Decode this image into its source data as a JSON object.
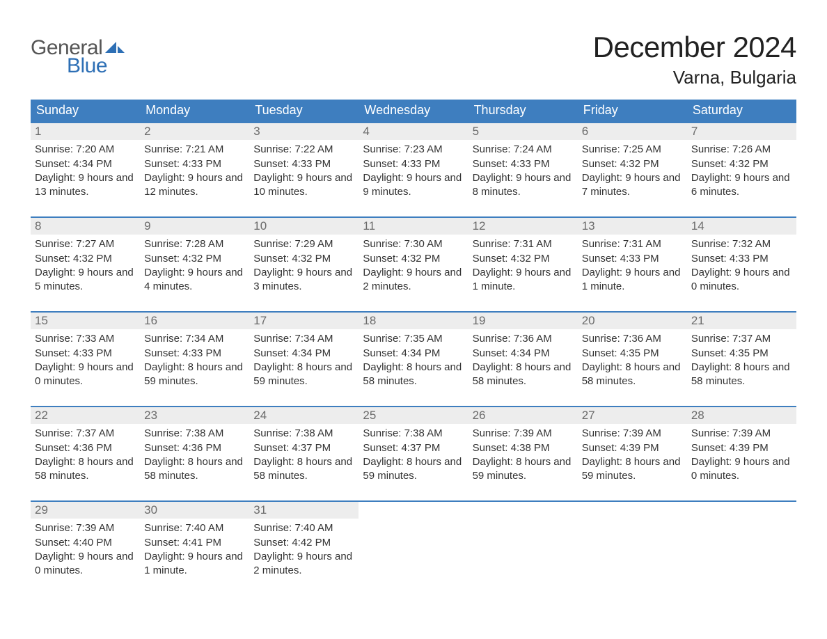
{
  "logo": {
    "text_general": "General",
    "text_blue": "Blue",
    "accent_color": "#2d6fb5",
    "general_color": "#555555"
  },
  "title": "December 2024",
  "location": "Varna, Bulgaria",
  "colors": {
    "header_bg": "#3e7ebf",
    "header_text": "#ffffff",
    "daynum_bg": "#ededed",
    "daynum_text": "#6b6b6b",
    "body_text": "#333333",
    "week_border": "#3e7ebf",
    "page_bg": "#ffffff"
  },
  "weekday_labels": [
    "Sunday",
    "Monday",
    "Tuesday",
    "Wednesday",
    "Thursday",
    "Friday",
    "Saturday"
  ],
  "labels": {
    "sunrise": "Sunrise:",
    "sunset": "Sunset:",
    "daylight": "Daylight:"
  },
  "weeks": [
    [
      {
        "day": "1",
        "sunrise": "7:20 AM",
        "sunset": "4:34 PM",
        "daylight": "9 hours and 13 minutes."
      },
      {
        "day": "2",
        "sunrise": "7:21 AM",
        "sunset": "4:33 PM",
        "daylight": "9 hours and 12 minutes."
      },
      {
        "day": "3",
        "sunrise": "7:22 AM",
        "sunset": "4:33 PM",
        "daylight": "9 hours and 10 minutes."
      },
      {
        "day": "4",
        "sunrise": "7:23 AM",
        "sunset": "4:33 PM",
        "daylight": "9 hours and 9 minutes."
      },
      {
        "day": "5",
        "sunrise": "7:24 AM",
        "sunset": "4:33 PM",
        "daylight": "9 hours and 8 minutes."
      },
      {
        "day": "6",
        "sunrise": "7:25 AM",
        "sunset": "4:32 PM",
        "daylight": "9 hours and 7 minutes."
      },
      {
        "day": "7",
        "sunrise": "7:26 AM",
        "sunset": "4:32 PM",
        "daylight": "9 hours and 6 minutes."
      }
    ],
    [
      {
        "day": "8",
        "sunrise": "7:27 AM",
        "sunset": "4:32 PM",
        "daylight": "9 hours and 5 minutes."
      },
      {
        "day": "9",
        "sunrise": "7:28 AM",
        "sunset": "4:32 PM",
        "daylight": "9 hours and 4 minutes."
      },
      {
        "day": "10",
        "sunrise": "7:29 AM",
        "sunset": "4:32 PM",
        "daylight": "9 hours and 3 minutes."
      },
      {
        "day": "11",
        "sunrise": "7:30 AM",
        "sunset": "4:32 PM",
        "daylight": "9 hours and 2 minutes."
      },
      {
        "day": "12",
        "sunrise": "7:31 AM",
        "sunset": "4:32 PM",
        "daylight": "9 hours and 1 minute."
      },
      {
        "day": "13",
        "sunrise": "7:31 AM",
        "sunset": "4:33 PM",
        "daylight": "9 hours and 1 minute."
      },
      {
        "day": "14",
        "sunrise": "7:32 AM",
        "sunset": "4:33 PM",
        "daylight": "9 hours and 0 minutes."
      }
    ],
    [
      {
        "day": "15",
        "sunrise": "7:33 AM",
        "sunset": "4:33 PM",
        "daylight": "9 hours and 0 minutes."
      },
      {
        "day": "16",
        "sunrise": "7:34 AM",
        "sunset": "4:33 PM",
        "daylight": "8 hours and 59 minutes."
      },
      {
        "day": "17",
        "sunrise": "7:34 AM",
        "sunset": "4:34 PM",
        "daylight": "8 hours and 59 minutes."
      },
      {
        "day": "18",
        "sunrise": "7:35 AM",
        "sunset": "4:34 PM",
        "daylight": "8 hours and 58 minutes."
      },
      {
        "day": "19",
        "sunrise": "7:36 AM",
        "sunset": "4:34 PM",
        "daylight": "8 hours and 58 minutes."
      },
      {
        "day": "20",
        "sunrise": "7:36 AM",
        "sunset": "4:35 PM",
        "daylight": "8 hours and 58 minutes."
      },
      {
        "day": "21",
        "sunrise": "7:37 AM",
        "sunset": "4:35 PM",
        "daylight": "8 hours and 58 minutes."
      }
    ],
    [
      {
        "day": "22",
        "sunrise": "7:37 AM",
        "sunset": "4:36 PM",
        "daylight": "8 hours and 58 minutes."
      },
      {
        "day": "23",
        "sunrise": "7:38 AM",
        "sunset": "4:36 PM",
        "daylight": "8 hours and 58 minutes."
      },
      {
        "day": "24",
        "sunrise": "7:38 AM",
        "sunset": "4:37 PM",
        "daylight": "8 hours and 58 minutes."
      },
      {
        "day": "25",
        "sunrise": "7:38 AM",
        "sunset": "4:37 PM",
        "daylight": "8 hours and 59 minutes."
      },
      {
        "day": "26",
        "sunrise": "7:39 AM",
        "sunset": "4:38 PM",
        "daylight": "8 hours and 59 minutes."
      },
      {
        "day": "27",
        "sunrise": "7:39 AM",
        "sunset": "4:39 PM",
        "daylight": "8 hours and 59 minutes."
      },
      {
        "day": "28",
        "sunrise": "7:39 AM",
        "sunset": "4:39 PM",
        "daylight": "9 hours and 0 minutes."
      }
    ],
    [
      {
        "day": "29",
        "sunrise": "7:39 AM",
        "sunset": "4:40 PM",
        "daylight": "9 hours and 0 minutes."
      },
      {
        "day": "30",
        "sunrise": "7:40 AM",
        "sunset": "4:41 PM",
        "daylight": "9 hours and 1 minute."
      },
      {
        "day": "31",
        "sunrise": "7:40 AM",
        "sunset": "4:42 PM",
        "daylight": "9 hours and 2 minutes."
      },
      {
        "empty": true
      },
      {
        "empty": true
      },
      {
        "empty": true
      },
      {
        "empty": true
      }
    ]
  ]
}
